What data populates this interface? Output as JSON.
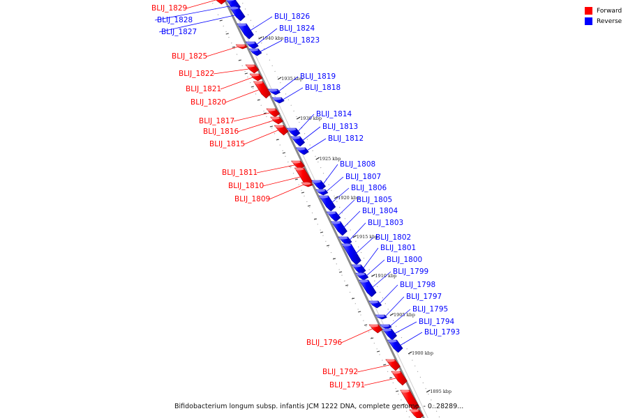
{
  "legend": {
    "items": [
      {
        "label": "Forward",
        "color": "#ff0000"
      },
      {
        "label": "Reverse",
        "color": "#0000ff"
      }
    ]
  },
  "caption": "Bifidobacterium longum subsp. infantis JCM 1222 DNA, complete genome. - 0..28289...",
  "colors": {
    "forward": "#ff0000",
    "reverse": "#0000ff",
    "axis": "#888888"
  },
  "ticks": [
    {
      "label": "1940 kbp"
    },
    {
      "label": "1935 kbp"
    },
    {
      "label": "1930 kbp"
    },
    {
      "label": "1925 kbp"
    },
    {
      "label": "1920 kbp"
    },
    {
      "label": "1915 kbp"
    },
    {
      "label": "1910 kbp"
    },
    {
      "label": "1905 kbp"
    },
    {
      "label": "1900 kbp"
    },
    {
      "label": "1895 kbp"
    }
  ],
  "genes": [
    {
      "id": "BLIJ_1829",
      "strand": "forward"
    },
    {
      "id": "BLIJ_1828",
      "strand": "reverse"
    },
    {
      "id": "BLIJ_1827",
      "strand": "reverse"
    },
    {
      "id": "BLIJ_1826",
      "strand": "reverse"
    },
    {
      "id": "BLIJ_1825",
      "strand": "forward"
    },
    {
      "id": "BLIJ_1824",
      "strand": "reverse"
    },
    {
      "id": "BLIJ_1823",
      "strand": "reverse"
    },
    {
      "id": "BLIJ_1822",
      "strand": "forward"
    },
    {
      "id": "BLIJ_1821",
      "strand": "forward"
    },
    {
      "id": "BLIJ_1820",
      "strand": "forward"
    },
    {
      "id": "BLIJ_1819",
      "strand": "reverse"
    },
    {
      "id": "BLIJ_1818",
      "strand": "reverse"
    },
    {
      "id": "BLIJ_1817",
      "strand": "forward"
    },
    {
      "id": "BLIJ_1816",
      "strand": "forward"
    },
    {
      "id": "BLIJ_1815",
      "strand": "forward"
    },
    {
      "id": "BLIJ_1814",
      "strand": "reverse"
    },
    {
      "id": "BLIJ_1813",
      "strand": "reverse"
    },
    {
      "id": "BLIJ_1812",
      "strand": "reverse"
    },
    {
      "id": "BLIJ_1811",
      "strand": "forward"
    },
    {
      "id": "BLIJ_1810",
      "strand": "forward"
    },
    {
      "id": "BLIJ_1809",
      "strand": "forward"
    },
    {
      "id": "BLIJ_1808",
      "strand": "reverse"
    },
    {
      "id": "BLIJ_1807",
      "strand": "reverse"
    },
    {
      "id": "BLIJ_1806",
      "strand": "reverse"
    },
    {
      "id": "BLIJ_1805",
      "strand": "reverse"
    },
    {
      "id": "BLIJ_1804",
      "strand": "reverse"
    },
    {
      "id": "BLIJ_1803",
      "strand": "reverse"
    },
    {
      "id": "BLIJ_1802",
      "strand": "reverse"
    },
    {
      "id": "BLIJ_1801",
      "strand": "reverse"
    },
    {
      "id": "BLIJ_1800",
      "strand": "reverse"
    },
    {
      "id": "BLIJ_1799",
      "strand": "reverse"
    },
    {
      "id": "BLIJ_1798",
      "strand": "reverse"
    },
    {
      "id": "BLIJ_1797",
      "strand": "reverse"
    },
    {
      "id": "BLIJ_1796",
      "strand": "forward"
    },
    {
      "id": "BLIJ_1795",
      "strand": "reverse"
    },
    {
      "id": "BLIJ_1794",
      "strand": "reverse"
    },
    {
      "id": "BLIJ_1793",
      "strand": "reverse"
    },
    {
      "id": "BLIJ_1792",
      "strand": "forward"
    },
    {
      "id": "BLIJ_1791",
      "strand": "forward"
    }
  ]
}
